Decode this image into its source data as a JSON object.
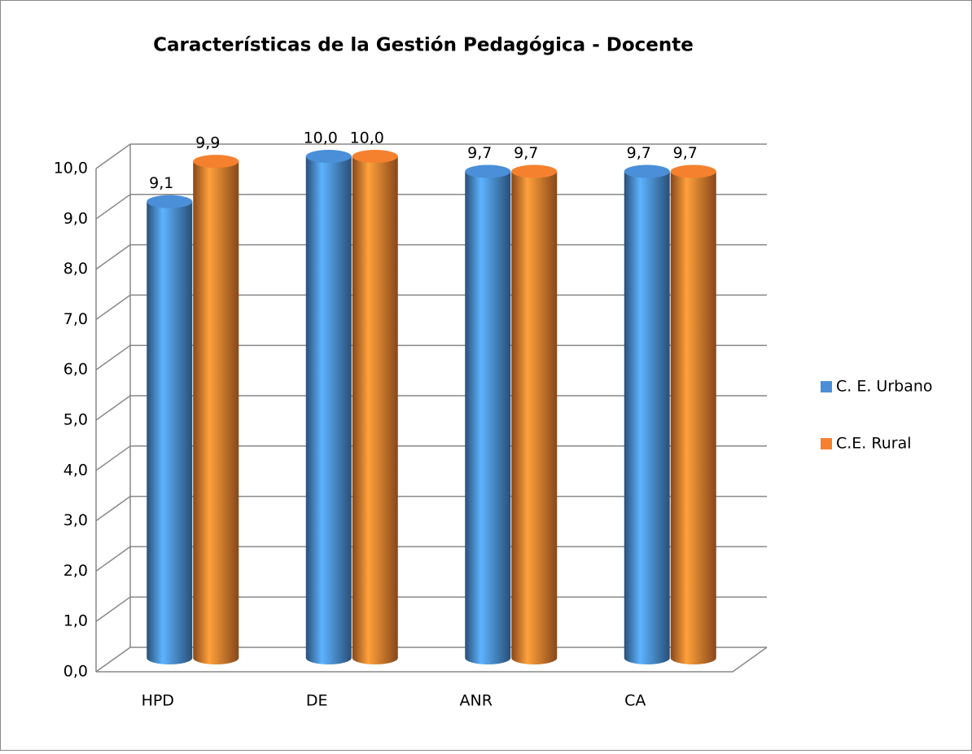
{
  "chart_data": {
    "type": "bar3d",
    "title": "Características de la Gestión Pedagógica - Docente",
    "categories": [
      "HPD",
      "DE",
      "ANR",
      "CA"
    ],
    "series": [
      {
        "name": "C. E. Urbano",
        "color": "#4a8fd8",
        "values": [
          9.1,
          10.0,
          9.7,
          9.7
        ],
        "value_labels": [
          "9,1",
          "10,0",
          "9,7",
          "9,7"
        ]
      },
      {
        "name": "C.E. Rural",
        "color": "#f5812f",
        "values": [
          9.9,
          10.0,
          9.7,
          9.7
        ],
        "value_labels": [
          "9,9",
          "10,0",
          "9,7",
          "9,7"
        ]
      }
    ],
    "ylim": [
      0,
      10
    ],
    "yticks": [
      {
        "value": 0,
        "label": "0,0"
      },
      {
        "value": 1,
        "label": "1,0"
      },
      {
        "value": 2,
        "label": "2,0"
      },
      {
        "value": 3,
        "label": "3,0"
      },
      {
        "value": 4,
        "label": "4,0"
      },
      {
        "value": 5,
        "label": "5,0"
      },
      {
        "value": 6,
        "label": "6,0"
      },
      {
        "value": 7,
        "label": "7,0"
      },
      {
        "value": 8,
        "label": "8,0"
      },
      {
        "value": 9,
        "label": "9,0"
      },
      {
        "value": 10,
        "label": "10,0"
      }
    ],
    "grid": true,
    "legend": "right"
  }
}
